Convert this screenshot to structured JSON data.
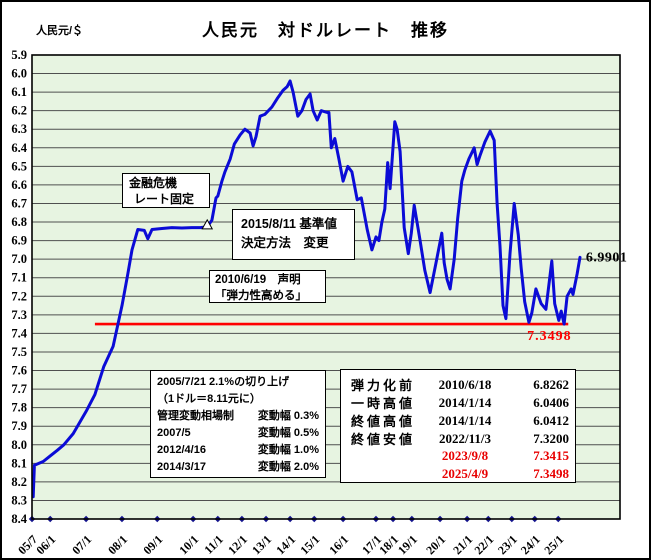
{
  "window": {
    "unit_label": "人民元/＄"
  },
  "chart_data": {
    "type": "line",
    "title": "人民元　対ドルレート　推移",
    "ylabel": "人民元/＄",
    "xlabel": "",
    "grid": true,
    "legend": "none",
    "y_axis": {
      "min": 5.9,
      "max": 8.4,
      "step": 0.1,
      "inverted": true,
      "note": "value increases downward (yuan depreciation)"
    },
    "x_ticks": [
      {
        "label": "05/7",
        "f": 0.0
      },
      {
        "label": "06/1",
        "f": 0.031
      },
      {
        "label": "07/1",
        "f": 0.092
      },
      {
        "label": "08/1",
        "f": 0.153
      },
      {
        "label": "09/1",
        "f": 0.213
      },
      {
        "label": "10/1",
        "f": 0.274
      },
      {
        "label": "11/1",
        "f": 0.316
      },
      {
        "label": "12/1",
        "f": 0.357
      },
      {
        "label": "13/1",
        "f": 0.398
      },
      {
        "label": "14/1",
        "f": 0.439
      },
      {
        "label": "15/1",
        "f": 0.48
      },
      {
        "label": "16/1",
        "f": 0.529
      },
      {
        "label": "17/1",
        "f": 0.585
      },
      {
        "label": "18/1",
        "f": 0.614
      },
      {
        "label": "19/1",
        "f": 0.646
      },
      {
        "label": "20/1",
        "f": 0.694
      },
      {
        "label": "21/1",
        "f": 0.74
      },
      {
        "label": "22/1",
        "f": 0.776
      },
      {
        "label": "23/1",
        "f": 0.816
      },
      {
        "label": "24/1",
        "f": 0.855
      },
      {
        "label": "25/1",
        "f": 0.895
      }
    ],
    "point_format": [
      "date",
      "value",
      "x_fraction"
    ],
    "series": [
      {
        "name": "人民元対ドルレート",
        "color": "#0b0bd6",
        "points": [
          [
            "2005/07",
            8.28,
            0.002
          ],
          [
            "2005/07",
            8.11,
            0.004
          ],
          [
            "2005/10",
            8.09,
            0.019
          ],
          [
            "2006/01",
            8.06,
            0.031
          ],
          [
            "2006/03",
            8.03,
            0.043
          ],
          [
            "2006/06",
            8.0,
            0.054
          ],
          [
            "2006/09",
            7.94,
            0.07
          ],
          [
            "2007/01",
            7.82,
            0.092
          ],
          [
            "2007/04",
            7.73,
            0.107
          ],
          [
            "2007/07",
            7.58,
            0.122
          ],
          [
            "2007/10",
            7.47,
            0.138
          ],
          [
            "2008/01",
            7.25,
            0.153
          ],
          [
            "2008/03",
            7.08,
            0.163
          ],
          [
            "2008/05",
            6.95,
            0.17
          ],
          [
            "2008/07",
            6.84,
            0.18
          ],
          [
            "2008/09",
            6.845,
            0.191
          ],
          [
            "2008/12",
            6.89,
            0.197
          ],
          [
            "2009/01",
            6.84,
            0.204
          ],
          [
            "2009/03",
            6.835,
            0.221
          ],
          [
            "2009/06",
            6.83,
            0.238
          ],
          [
            "2009/09",
            6.832,
            0.255
          ],
          [
            "2009/12",
            6.83,
            0.272
          ],
          [
            "2010/03",
            6.83,
            0.286
          ],
          [
            "2010/06",
            6.826,
            0.298
          ],
          [
            "2010/08",
            6.79,
            0.306
          ],
          [
            "2010/10",
            6.67,
            0.313
          ],
          [
            "2010/12",
            6.66,
            0.316
          ],
          [
            "2011/02",
            6.58,
            0.323
          ],
          [
            "2011/04",
            6.53,
            0.328
          ],
          [
            "2011/07",
            6.46,
            0.337
          ],
          [
            "2011/09",
            6.38,
            0.344
          ],
          [
            "2011/12",
            6.33,
            0.354
          ],
          [
            "2012/02",
            6.3,
            0.362
          ],
          [
            "2012/05",
            6.32,
            0.371
          ],
          [
            "2012/07",
            6.39,
            0.376
          ],
          [
            "2012/09",
            6.34,
            0.381
          ],
          [
            "2012/11",
            6.23,
            0.388
          ],
          [
            "2013/01",
            6.22,
            0.396
          ],
          [
            "2013/04",
            6.18,
            0.408
          ],
          [
            "2013/07",
            6.13,
            0.418
          ],
          [
            "2013/10",
            6.09,
            0.427
          ],
          [
            "2013/12",
            6.07,
            0.434
          ],
          [
            "2014/01",
            6.04,
            0.439
          ],
          [
            "2014/02",
            6.1,
            0.444
          ],
          [
            "2014/04",
            6.23,
            0.452
          ],
          [
            "2014/06",
            6.2,
            0.459
          ],
          [
            "2014/08",
            6.14,
            0.466
          ],
          [
            "2014/10",
            6.11,
            0.473
          ],
          [
            "2014/12",
            6.2,
            0.478
          ],
          [
            "2015/02",
            6.25,
            0.485
          ],
          [
            "2015/04",
            6.2,
            0.492
          ],
          [
            "2015/07",
            6.21,
            0.502
          ],
          [
            "2015/08",
            6.21,
            0.505
          ],
          [
            "2015/08",
            6.4,
            0.509
          ],
          [
            "2015/10",
            6.35,
            0.515
          ],
          [
            "2015/12",
            6.46,
            0.522
          ],
          [
            "2016/01",
            6.58,
            0.529
          ],
          [
            "2016/03",
            6.5,
            0.537
          ],
          [
            "2016/05",
            6.53,
            0.544
          ],
          [
            "2016/07",
            6.68,
            0.553
          ],
          [
            "2016/09",
            6.67,
            0.56
          ],
          [
            "2016/11",
            6.84,
            0.57
          ],
          [
            "2016/12",
            6.95,
            0.578
          ],
          [
            "2017/01",
            6.88,
            0.585
          ],
          [
            "2017/03",
            6.9,
            0.59
          ],
          [
            "2017/05",
            6.8,
            0.595
          ],
          [
            "2017/07",
            6.73,
            0.6
          ],
          [
            "2017/09",
            6.48,
            0.605
          ],
          [
            "2017/10",
            6.62,
            0.609
          ],
          [
            "2018/02",
            6.26,
            0.617
          ],
          [
            "2018/04",
            6.3,
            0.621
          ],
          [
            "2018/06",
            6.42,
            0.626
          ],
          [
            "2018/08",
            6.83,
            0.633
          ],
          [
            "2018/10",
            6.97,
            0.64
          ],
          [
            "2018/12",
            6.86,
            0.645
          ],
          [
            "2019/03",
            6.71,
            0.65
          ],
          [
            "2019/05",
            6.9,
            0.66
          ],
          [
            "2019/08",
            7.06,
            0.668
          ],
          [
            "2019/09",
            7.18,
            0.677
          ],
          [
            "2019/11",
            7.02,
            0.687
          ],
          [
            "2020/01",
            6.86,
            0.697
          ],
          [
            "2020/02",
            7.02,
            0.701
          ],
          [
            "2020/03",
            7.11,
            0.706
          ],
          [
            "2020/05",
            7.16,
            0.711
          ],
          [
            "2020/07",
            7.0,
            0.718
          ],
          [
            "2020/09",
            6.78,
            0.724
          ],
          [
            "2020/11",
            6.58,
            0.731
          ],
          [
            "2020/12",
            6.52,
            0.736
          ],
          [
            "2021/02",
            6.46,
            0.743
          ],
          [
            "2021/05",
            6.4,
            0.752
          ],
          [
            "2021/07",
            6.49,
            0.757
          ],
          [
            "2021/09",
            6.44,
            0.762
          ],
          [
            "2021/12",
            6.37,
            0.77
          ],
          [
            "2022/02",
            6.31,
            0.779
          ],
          [
            "2022/04",
            6.36,
            0.786
          ],
          [
            "2022/06",
            6.7,
            0.791
          ],
          [
            "2022/08",
            6.93,
            0.796
          ],
          [
            "2022/10",
            7.25,
            0.801
          ],
          [
            "2022/11",
            7.32,
            0.806
          ],
          [
            "2022/12",
            6.97,
            0.813
          ],
          [
            "2023/01",
            6.7,
            0.82
          ],
          [
            "2023/03",
            6.87,
            0.827
          ],
          [
            "2023/05",
            7.05,
            0.832
          ],
          [
            "2023/07",
            7.23,
            0.838
          ],
          [
            "2023/09",
            7.34,
            0.845
          ],
          [
            "2023/11",
            7.29,
            0.85
          ],
          [
            "2024/01",
            7.16,
            0.857
          ],
          [
            "2024/04",
            7.24,
            0.866
          ],
          [
            "2024/07",
            7.27,
            0.874
          ],
          [
            "2024/09",
            7.01,
            0.884
          ],
          [
            "2024/11",
            7.24,
            0.889
          ],
          [
            "2025/01",
            7.33,
            0.896
          ],
          [
            "2025/02",
            7.28,
            0.9
          ],
          [
            "2025/04",
            7.35,
            0.905
          ],
          [
            "2025/05",
            7.2,
            0.91
          ],
          [
            "2025/07",
            7.16,
            0.917
          ],
          [
            "2025/08",
            7.19,
            0.92
          ],
          [
            "2025/10",
            7.08,
            0.927
          ],
          [
            "2025/11",
            6.99,
            0.932
          ]
        ]
      }
    ],
    "reference_line": {
      "value": 7.3498,
      "label": "7.3498",
      "color": "#ff0000",
      "x_start_f": 0.107,
      "x_end_f": 0.912,
      "label_f": 0.842
    },
    "end_label": {
      "text": "6.9901",
      "value": 6.9901,
      "f": 0.942,
      "color": "#000000"
    },
    "event_marker": {
      "date": "2010/06",
      "value": 6.826,
      "f": 0.298,
      "shape": "white-triangle"
    },
    "plot_bg_color": "#e7f4e1",
    "gridline_color": "#4f4f4f",
    "tick_diamond_color": "#14148c"
  },
  "annotations": {
    "crisis": {
      "lines": [
        "金融危機",
        "レート固定"
      ]
    },
    "benchmark": {
      "lines": [
        "2015/8/11 基準値",
        "決定方法　変更"
      ]
    },
    "statement": {
      "lines": [
        "2010/6/19　声明",
        "「弾力性高める」"
      ]
    },
    "revaluation": {
      "rows": [
        {
          "left": "2005/7/21 2.1%の切り上げ",
          "right": ""
        },
        {
          "left": "（1ドル＝8.11元に）",
          "right": ""
        },
        {
          "left": "管理変動相場制",
          "right": "変動幅 0.3%"
        },
        {
          "left": "2007/5",
          "right": "変動幅 0.5%"
        },
        {
          "left": "2012/4/16",
          "right": "変動幅 1.0%"
        },
        {
          "left": "2014/3/17",
          "right": "変動幅 2.0%"
        }
      ]
    }
  },
  "stats_table": {
    "rows": [
      {
        "label": "弾力化前",
        "date": "2010/6/18",
        "value": "6.8262",
        "red": false
      },
      {
        "label": "一時高値",
        "date": "2014/1/14",
        "value": "6.0406",
        "red": false
      },
      {
        "label": "終値高値",
        "date": "2014/1/14",
        "value": "6.0412",
        "red": false
      },
      {
        "label": "終値安値",
        "date": "2022/11/3",
        "value": "7.3200",
        "red": false
      },
      {
        "label": "",
        "date": "2023/9/8",
        "value": "7.3415",
        "red": true
      },
      {
        "label": "",
        "date": "2025/4/9",
        "value": "7.3498",
        "red": true
      }
    ]
  }
}
